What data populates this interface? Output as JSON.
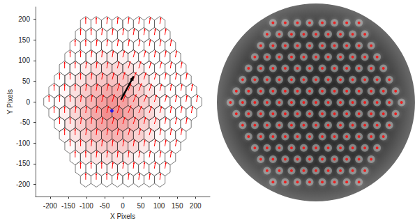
{
  "chart_data": [
    {
      "type": "vector",
      "xlabel": "X Pixels",
      "ylabel": "Y Pixels",
      "xlim": [
        -240,
        240
      ],
      "ylim": [
        -230,
        230
      ],
      "xticks": [
        -200,
        -150,
        -100,
        -50,
        0,
        50,
        100,
        150,
        200
      ],
      "yticks": [
        -200,
        -150,
        -100,
        -50,
        0,
        50,
        100,
        150,
        200
      ],
      "grid": false,
      "color": "#ff0000",
      "point": {
        "x": -30,
        "y": -22,
        "color": "#0000ff",
        "marker": "circle"
      },
      "arrow": {
        "x": [
          -5,
          30
        ],
        "y": [
          5,
          62
        ],
        "color": "#000000"
      },
      "rows": [
        {
          "y": 189,
          "x": [
            -102,
            -73,
            -44,
            -15,
            15,
            44,
            73,
            102
          ],
          "dx": [
            0,
            0,
            2,
            2,
            2,
            2,
            3,
            3
          ],
          "dy": [
            16,
            16,
            16,
            16,
            16,
            16,
            16,
            16
          ]
        },
        {
          "y": 162,
          "x": [
            -116,
            -87,
            -58,
            -29,
            0,
            29,
            58,
            87,
            116
          ],
          "dx": [
            0,
            0,
            2,
            2,
            2,
            3,
            3,
            3,
            3
          ],
          "dy": [
            16,
            16,
            16,
            16,
            16,
            16,
            16,
            16,
            16
          ]
        },
        {
          "y": 135,
          "x": [
            -131,
            -102,
            -73,
            -44,
            -15,
            15,
            44,
            73,
            102,
            131
          ],
          "dx": [
            0,
            0,
            2,
            2,
            3,
            3,
            3,
            3,
            3,
            3
          ],
          "dy": [
            16,
            16,
            16,
            16,
            16,
            16,
            16,
            16,
            16,
            16
          ]
        },
        {
          "y": 108,
          "x": [
            -145,
            -116,
            -87,
            -58,
            -29,
            0,
            29,
            58,
            87,
            116,
            145
          ],
          "dx": [
            0,
            0,
            2,
            2,
            3,
            5,
            5,
            5,
            3,
            3,
            3
          ],
          "dy": [
            16,
            16,
            16,
            16,
            16,
            16,
            16,
            16,
            16,
            16,
            16
          ]
        },
        {
          "y": 81,
          "x": [
            -160,
            -131,
            -102,
            -73,
            -44,
            -15,
            15,
            44,
            73,
            102,
            131,
            160
          ],
          "dx": [
            0,
            0,
            2,
            2,
            3,
            5,
            6,
            6,
            5,
            5,
            3,
            3
          ],
          "dy": [
            16,
            16,
            16,
            16,
            16,
            17,
            17,
            17,
            16,
            16,
            16,
            16
          ]
        },
        {
          "y": 54,
          "x": [
            -174,
            -145,
            -116,
            -87,
            -58,
            -29,
            0,
            29,
            58,
            87,
            116,
            145,
            174
          ],
          "dx": [
            0,
            0,
            0,
            2,
            3,
            5,
            6,
            8,
            6,
            5,
            3,
            3,
            3
          ],
          "dy": [
            16,
            16,
            16,
            16,
            16,
            17,
            18,
            18,
            17,
            16,
            16,
            16,
            16
          ]
        },
        {
          "y": 27,
          "x": [
            -189,
            -160,
            -131,
            -102,
            -73,
            -44,
            -15,
            15,
            44,
            73,
            102,
            131,
            160,
            189
          ],
          "dx": [
            0,
            0,
            0,
            2,
            3,
            5,
            6,
            8,
            8,
            6,
            5,
            3,
            3,
            3
          ],
          "dy": [
            16,
            16,
            16,
            16,
            17,
            17,
            18,
            18,
            18,
            17,
            16,
            16,
            16,
            16
          ]
        },
        {
          "y": 0,
          "x": [
            -203,
            -174,
            -145,
            -116,
            -87,
            -58,
            -29,
            0,
            29,
            58,
            87,
            116,
            145,
            174,
            203
          ],
          "dx": [
            0,
            0,
            0,
            2,
            3,
            5,
            6,
            8,
            8,
            8,
            6,
            5,
            3,
            3,
            3
          ],
          "dy": [
            16,
            16,
            16,
            16,
            17,
            17,
            18,
            18,
            18,
            17,
            17,
            16,
            16,
            16,
            16
          ]
        },
        {
          "y": -27,
          "x": [
            -189,
            -160,
            -131,
            -102,
            -73,
            -44,
            -15,
            15,
            44,
            73,
            102,
            131,
            160,
            189
          ],
          "dx": [
            0,
            0,
            2,
            2,
            3,
            5,
            6,
            8,
            8,
            6,
            5,
            3,
            3,
            3
          ],
          "dy": [
            16,
            16,
            16,
            16,
            17,
            17,
            18,
            18,
            17,
            17,
            16,
            16,
            16,
            16
          ]
        },
        {
          "y": -54,
          "x": [
            -174,
            -145,
            -116,
            -87,
            -58,
            -29,
            0,
            29,
            58,
            87,
            116,
            145,
            174
          ],
          "dx": [
            0,
            0,
            2,
            2,
            3,
            5,
            6,
            6,
            5,
            5,
            3,
            3,
            3
          ],
          "dy": [
            16,
            16,
            16,
            16,
            16,
            17,
            17,
            17,
            17,
            16,
            16,
            16,
            16
          ]
        },
        {
          "y": -81,
          "x": [
            -160,
            -131,
            -102,
            -73,
            -44,
            -15,
            15,
            44,
            73,
            102,
            131,
            160
          ],
          "dx": [
            0,
            0,
            2,
            2,
            3,
            3,
            5,
            5,
            5,
            3,
            3,
            3
          ],
          "dy": [
            16,
            16,
            16,
            16,
            16,
            16,
            16,
            16,
            16,
            16,
            16,
            16
          ]
        },
        {
          "y": -108,
          "x": [
            -145,
            -116,
            -87,
            -58,
            -29,
            0,
            29,
            58,
            87,
            116,
            145
          ],
          "dx": [
            0,
            0,
            2,
            2,
            2,
            3,
            3,
            3,
            3,
            3,
            3
          ],
          "dy": [
            16,
            16,
            16,
            16,
            16,
            16,
            16,
            16,
            16,
            16,
            16
          ]
        },
        {
          "y": -135,
          "x": [
            -131,
            -102,
            -73,
            -44,
            -15,
            15,
            44,
            73,
            102,
            131
          ],
          "dx": [
            0,
            0,
            2,
            2,
            2,
            2,
            3,
            3,
            3,
            3
          ],
          "dy": [
            16,
            16,
            16,
            16,
            16,
            16,
            16,
            16,
            16,
            16
          ]
        },
        {
          "y": -162,
          "x": [
            -116,
            -87,
            -58,
            -29,
            0,
            29,
            58,
            87,
            116
          ],
          "dx": [
            0,
            0,
            0,
            2,
            2,
            2,
            2,
            3,
            3
          ],
          "dy": [
            16,
            16,
            16,
            16,
            16,
            16,
            16,
            16,
            16
          ]
        },
        {
          "y": -189,
          "x": [
            -102,
            -73,
            -44,
            -15,
            15,
            44,
            73,
            102
          ],
          "dx": [
            0,
            0,
            0,
            2,
            2,
            2,
            2,
            2
          ],
          "dy": [
            16,
            16,
            16,
            16,
            16,
            16,
            16,
            16
          ]
        }
      ]
    },
    {
      "type": "image",
      "xlim": [
        -235,
        235
      ],
      "ylim": [
        -235,
        235
      ],
      "tick_labels": false,
      "color": "#ff0000",
      "marker": "circle"
    }
  ]
}
